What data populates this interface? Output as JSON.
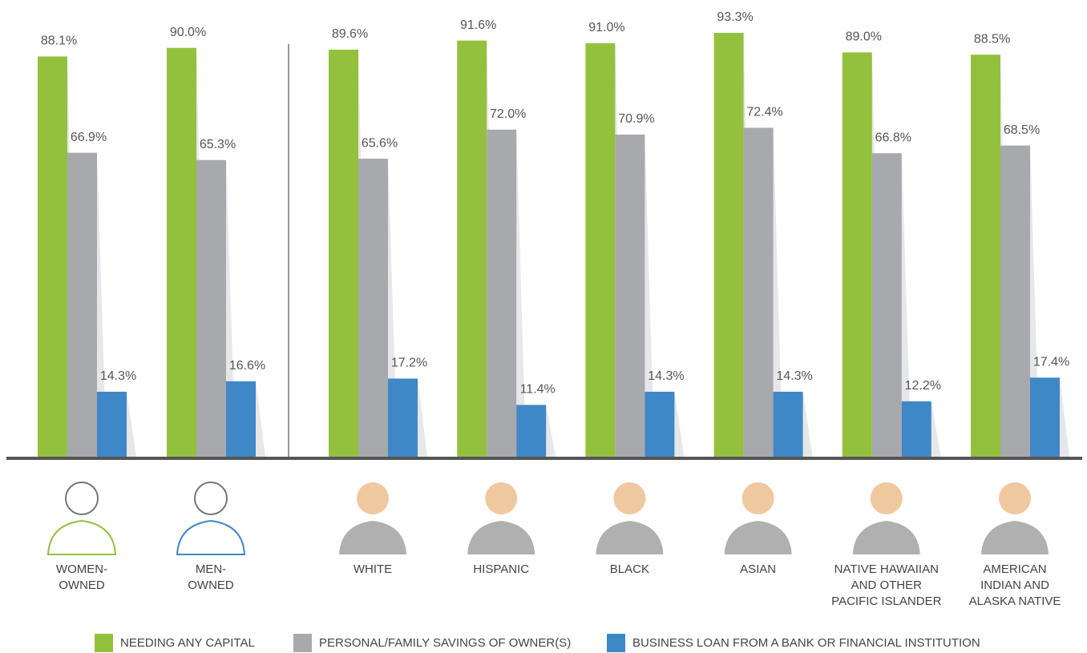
{
  "chart_data": {
    "type": "bar",
    "categories": [
      "WOMEN-\nOWNED",
      "MEN-\nOWNED",
      "WHITE",
      "HISPANIC",
      "BLACK",
      "ASIAN",
      "NATIVE HAWAIIAN\nAND OTHER\nPACIFIC ISLANDER",
      "AMERICAN\nINDIAN AND\nALASKA NATIVE"
    ],
    "series": [
      {
        "name": "NEEDING ANY CAPITAL",
        "color": "#93c13e",
        "values": [
          88.1,
          90.0,
          89.6,
          91.6,
          91.0,
          93.3,
          89.0,
          88.5
        ],
        "value_labels": [
          "88.1%",
          "90.0%",
          "89.6%",
          "91.6%",
          "91.0%",
          "93.3%",
          "89.0%",
          "88.5%"
        ]
      },
      {
        "name": "PERSONAL/FAMILY SAVINGS OF OWNER(S)",
        "color": "#a7a9ac",
        "values": [
          66.9,
          65.3,
          65.6,
          72.0,
          70.9,
          72.4,
          66.8,
          68.5
        ],
        "value_labels": [
          "66.9%",
          "65.3%",
          "65.6%",
          "72.0%",
          "70.9%",
          "72.4%",
          "66.8%",
          "68.5%"
        ]
      },
      {
        "name": "BUSINESS LOAN FROM A BANK OR FINANCIAL INSTITUTION",
        "color": "#3f88c8",
        "values": [
          14.3,
          16.6,
          17.2,
          11.4,
          14.3,
          14.3,
          12.2,
          17.4
        ],
        "value_labels": [
          "14.3%",
          "16.6%",
          "17.2%",
          "11.4%",
          "14.3%",
          "14.3%",
          "12.2%",
          "17.4%"
        ]
      }
    ],
    "ylim": [
      0,
      100
    ]
  }
}
